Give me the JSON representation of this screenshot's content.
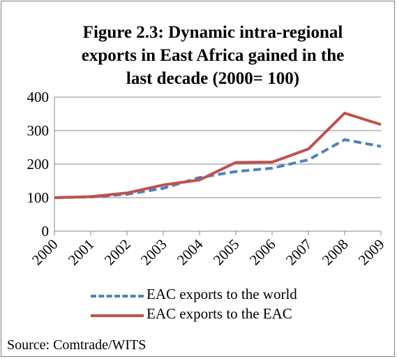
{
  "chart_data": {
    "type": "line",
    "title_lines": [
      "Figure 2.3: Dynamic intra-regional",
      "exports in East Africa gained in the",
      "last decade (2000= 100)"
    ],
    "categories": [
      "2000",
      "2001",
      "2002",
      "2003",
      "2004",
      "2005",
      "2006",
      "2007",
      "2008",
      "2009"
    ],
    "ylim": [
      0,
      400
    ],
    "yticks": [
      0,
      100,
      200,
      300,
      400
    ],
    "grid": "horizontal",
    "legend_position": "bottom",
    "series": [
      {
        "name": "EAC exports to the world",
        "color": "#4f81bd",
        "style": "dashed",
        "values": [
          100,
          102,
          110,
          128,
          160,
          178,
          188,
          213,
          273,
          253
        ]
      },
      {
        "name": "EAC exports to the EAC",
        "color": "#c0504d",
        "style": "solid",
        "values": [
          100,
          103,
          114,
          138,
          153,
          205,
          206,
          245,
          352,
          318
        ]
      }
    ]
  },
  "source": "Source: Comtrade/WITS"
}
